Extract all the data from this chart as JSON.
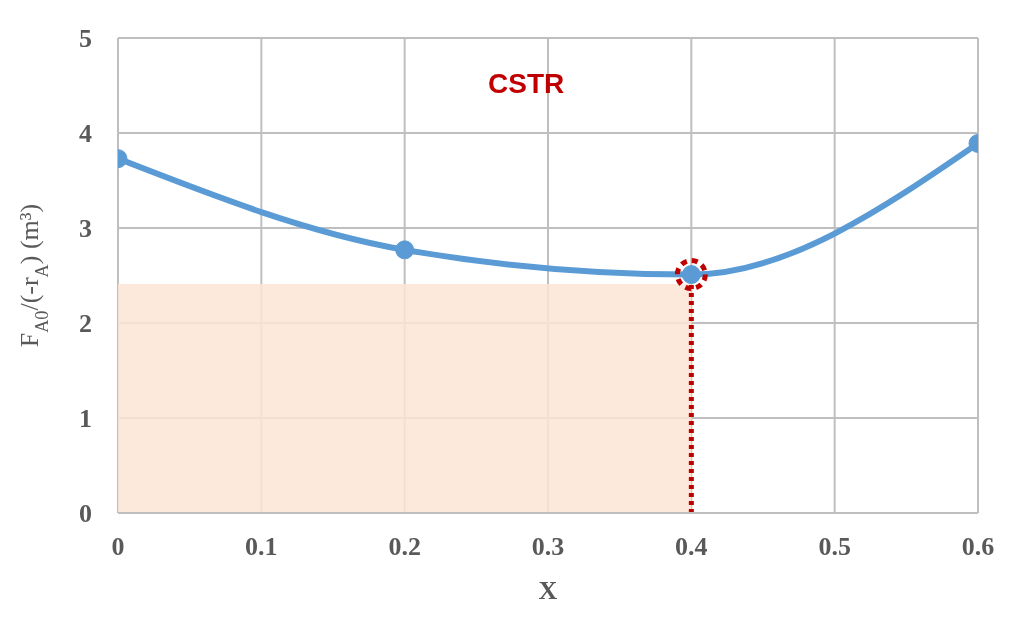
{
  "chart_data": {
    "type": "line",
    "xlabel": "X",
    "ylabel": "F$_{A0}$/(-r$_{A}$) (m³)",
    "annotations": [
      "CSTR"
    ],
    "x": [
      0,
      0.2,
      0.4,
      0.6
    ],
    "series": [
      {
        "color": "#5b9bd5",
        "values": [
          3.73,
          2.77,
          2.51,
          3.89
        ],
        "marker": "circle"
      },
      {
        "type": "area",
        "color": "#fbe5d6",
        "values": [
          2.41,
          2.41,
          2.41,
          null
        ]
      },
      {
        "type": "line",
        "color": "#c00000",
        "x": [
          0.4,
          0.4
        ],
        "values": [
          0,
          2.51
        ],
        "line_style": "dotted",
        "marker": "circle"
      }
    ],
    "xlim": [
      0,
      0.6
    ],
    "xticks": [
      0,
      0.1,
      0.2,
      0.3,
      0.4,
      0.5,
      0.6
    ],
    "ylim": [
      0,
      5
    ],
    "yticks": [
      0,
      1,
      2,
      3,
      4,
      5
    ],
    "grid": true,
    "line_style": "solid"
  }
}
